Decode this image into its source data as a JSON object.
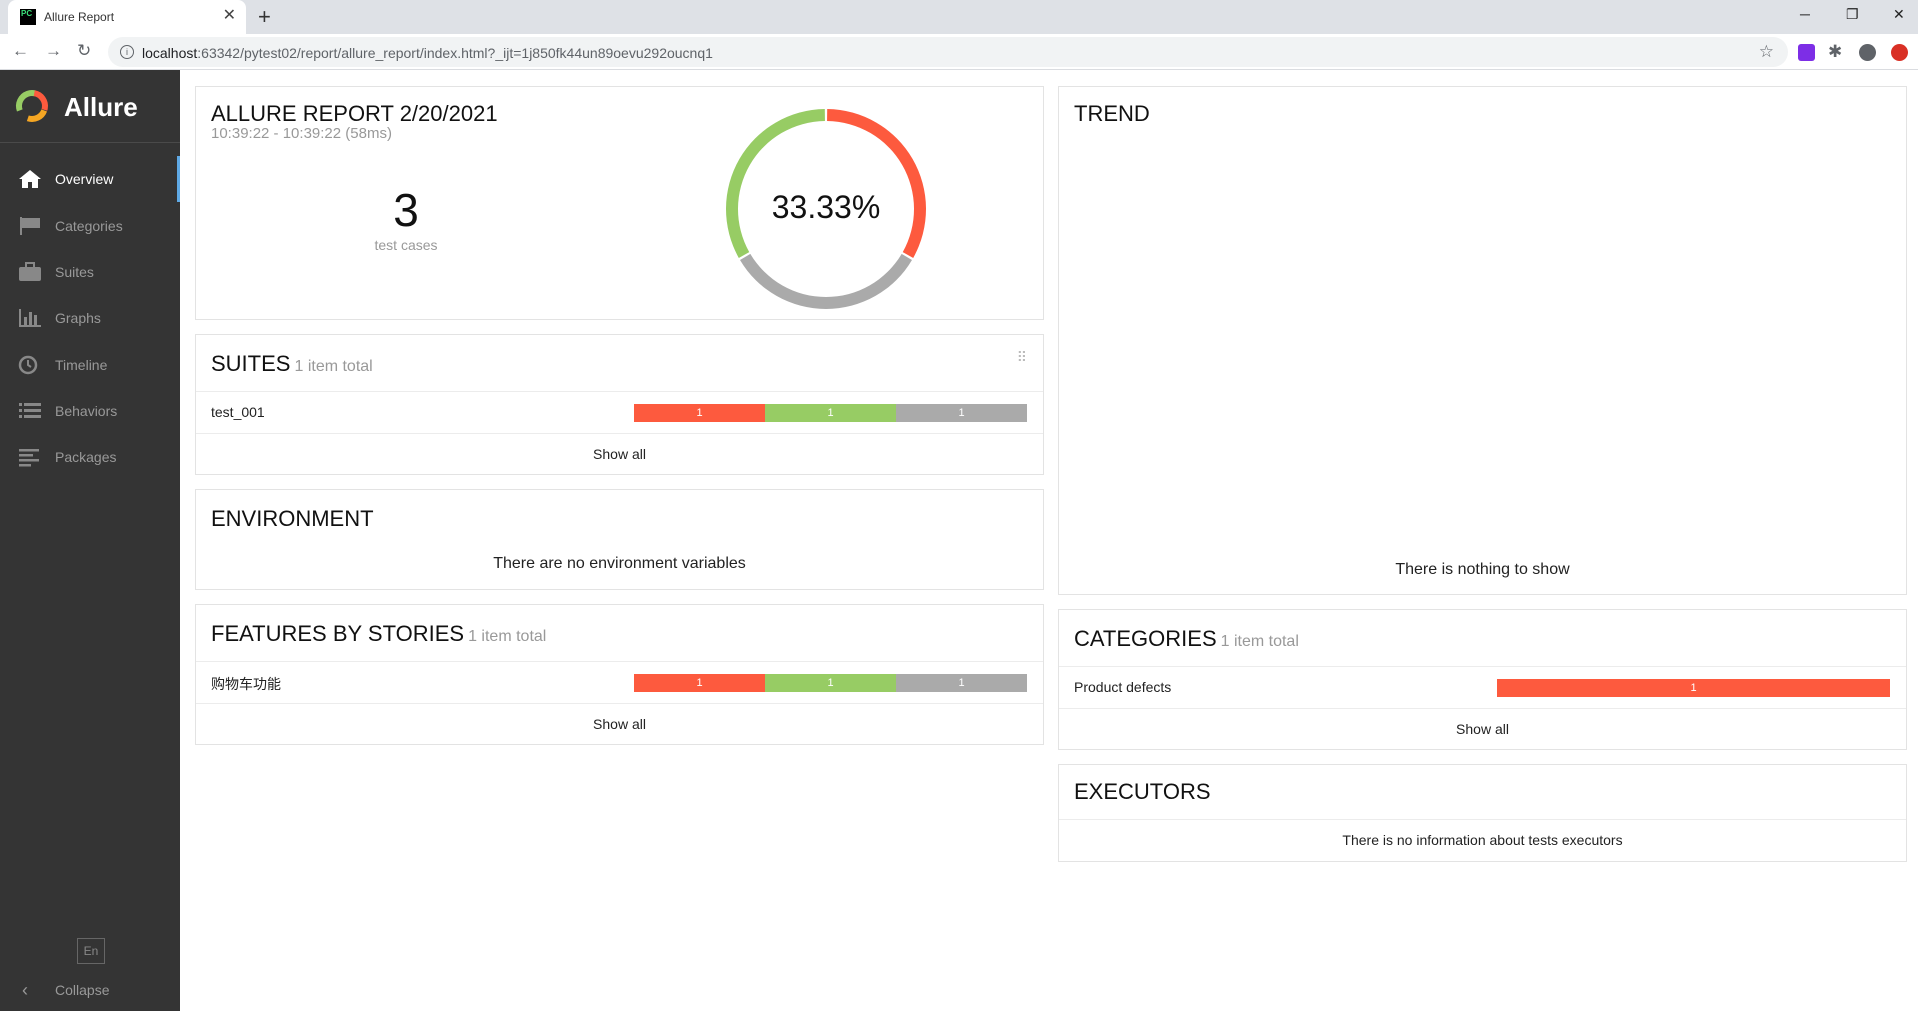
{
  "browser": {
    "tab_title": "Allure Report",
    "tab_favicon_text": "PC",
    "url_host": "localhost",
    "url_rest": ":63342/pytest02/report/allure_report/index.html?_ijt=1j850fk44un89oevu292oucnq1",
    "icons": [
      "back-icon",
      "forward-icon",
      "reload-icon",
      "info-icon",
      "star-icon",
      "extensions-icon",
      "profile-icon",
      "update-icon"
    ]
  },
  "sidebar": {
    "brand": "Allure",
    "items": [
      {
        "label": "Overview",
        "icon": "home-icon",
        "active": true
      },
      {
        "label": "Categories",
        "icon": "flag-icon",
        "active": false
      },
      {
        "label": "Suites",
        "icon": "briefcase-icon",
        "active": false
      },
      {
        "label": "Graphs",
        "icon": "bar-chart-icon",
        "active": false
      },
      {
        "label": "Timeline",
        "icon": "clock-icon",
        "active": false
      },
      {
        "label": "Behaviors",
        "icon": "list-icon",
        "active": false
      },
      {
        "label": "Packages",
        "icon": "align-left-icon",
        "active": false
      }
    ],
    "lang": "En",
    "collapse": "Collapse"
  },
  "summary": {
    "title": "ALLURE REPORT 2/20/2021",
    "time": "10:39:22 - 10:39:22 (58ms)",
    "count": "3",
    "count_label": "test cases",
    "percent": "33.33%",
    "donut": {
      "failed": 1,
      "passed": 1,
      "unknown": 1
    }
  },
  "colors": {
    "failed": "#fd5a3e",
    "passed": "#97cc64",
    "unknown": "#aaaaaa",
    "accent": "#5fa9e5",
    "sidebar": "#343434"
  },
  "suites": {
    "title": "SUITES",
    "total": "1 item total",
    "rows": [
      {
        "name": "test_001",
        "failed": "1",
        "passed": "1",
        "unknown": "1"
      }
    ],
    "show_all": "Show all"
  },
  "environment": {
    "title": "ENVIRONMENT",
    "message": "There are no environment variables"
  },
  "features": {
    "title": "FEATURES BY STORIES",
    "total": "1 item total",
    "rows": [
      {
        "name": "购物车功能",
        "failed": "1",
        "passed": "1",
        "unknown": "1"
      }
    ],
    "show_all": "Show all"
  },
  "trend": {
    "title": "TREND",
    "message": "There is nothing to show"
  },
  "categories": {
    "title": "CATEGORIES",
    "total": "1 item total",
    "rows": [
      {
        "name": "Product defects",
        "value": "1"
      }
    ],
    "show_all": "Show all"
  },
  "executors": {
    "title": "EXECUTORS",
    "message": "There is no information about tests executors"
  }
}
